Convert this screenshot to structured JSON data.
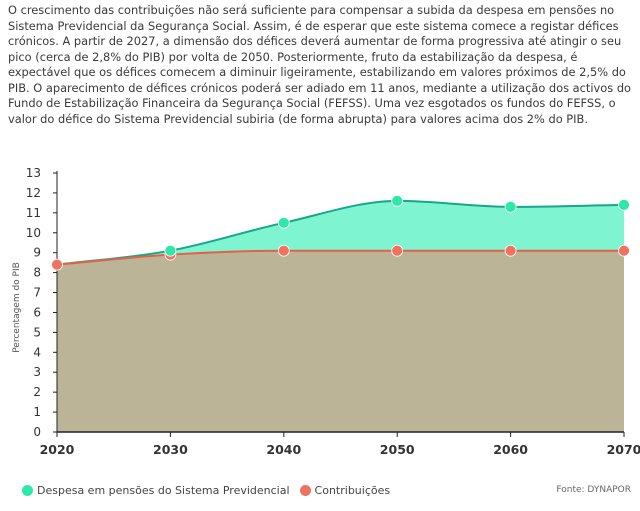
{
  "text": "O crescimento das contribuições não será suficiente para compensar a subida da despesa em pensões no Sistema Previdencial da Segurança Social. Assim, é de esperar que este sistema comece a registar défices crónicos. A partir de 2027, a dimensão dos défices deverá aumentar de forma progressiva até atingir o seu pico (cerca de 2,8% do PIB) por volta de 2050. Posteriormente, fruto da estabilização da despesa, é expectável que os défices comecem a diminuir ligeiramente, estabilizando em valores próximos de 2,5% do PIB. O aparecimento de défices crónicos poderá ser adiado em 11 anos, mediante a utilização dos activos do Fundo de Estabilização Financeira da Segurança Social (FEFSS). Uma vez esgotados os fundos do FEFSS, o valor do défice do Sistema Previdencial subiria (de forma abrupta) para valores acima dos 2% do PIB.",
  "source": "Fonte: DYNAPOR",
  "colors": {
    "despesa_fill": "#7ef5d0",
    "despesa_line": "#16a889",
    "despesa_dot": "#2ee8a8",
    "contrib_line": "#e4604b",
    "contrib_dot": "#f07260",
    "base_fill": "#bcb496"
  },
  "chart_data": {
    "type": "area",
    "ylabel": "Percentagem do PIB",
    "xlabel": "",
    "x": [
      2020,
      2030,
      2040,
      2050,
      2060,
      2070
    ],
    "ylim": [
      0,
      13
    ],
    "yticks": [
      0,
      1,
      2,
      3,
      4,
      5,
      6,
      7,
      8,
      9,
      10,
      11,
      12,
      13
    ],
    "grid": false,
    "legend_position": "bottom-left",
    "series": [
      {
        "name": "Despesa em pensões do Sistema Previdencial",
        "values": [
          8.4,
          9.1,
          10.5,
          11.6,
          11.3,
          11.4
        ]
      },
      {
        "name": "Contribuições",
        "values": [
          8.4,
          8.9,
          9.1,
          9.1,
          9.1,
          9.1
        ]
      }
    ]
  }
}
